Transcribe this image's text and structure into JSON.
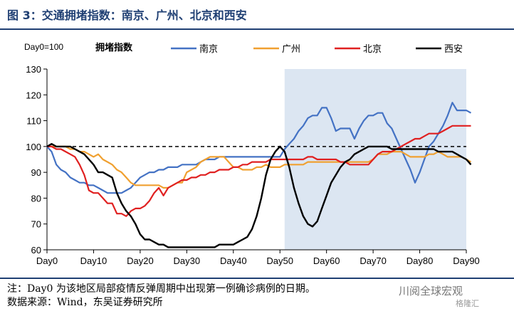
{
  "figure_title": "图 3：交通拥堵指数：南京、广州、北京和西安",
  "notes": {
    "note": "注：Day0 为该地区局部疫情反弹周期中出现第一例确诊病例的日期。",
    "source": "数据来源：Wind，东吴证券研究所"
  },
  "watermark": {
    "text": "川阅全球宏观",
    "sub": "格隆汇"
  },
  "chart_data": {
    "type": "line",
    "title": "拥堵指数",
    "baseline_label": "Day0=100",
    "ylim": [
      60,
      130
    ],
    "yticks": [
      60,
      70,
      80,
      90,
      100,
      110,
      120,
      130
    ],
    "xlim": [
      0,
      90
    ],
    "xticks": [
      0,
      10,
      20,
      30,
      40,
      50,
      60,
      70,
      80,
      90
    ],
    "xtick_labels": [
      "Day0",
      "Day10",
      "Day20",
      "Day30",
      "Day40",
      "Day50",
      "Day60",
      "Day70",
      "Day80",
      "Day90"
    ],
    "shaded_range": [
      51,
      90
    ],
    "shade_color": "#dce6f2",
    "reference_line": 100,
    "legend_position": "top",
    "series": [
      {
        "name": "南京",
        "color": "#4472c4",
        "values": [
          100,
          98,
          93,
          91,
          90,
          88,
          87,
          86,
          86,
          85,
          85,
          84,
          83,
          82,
          82,
          82,
          82,
          83,
          84,
          86,
          88,
          89,
          90,
          90,
          91,
          91,
          92,
          92,
          92,
          93,
          93,
          93,
          93,
          94,
          95,
          95,
          95,
          96,
          96,
          96,
          96,
          96,
          96,
          96,
          96,
          96,
          96,
          96,
          96,
          96,
          96,
          99,
          101,
          103,
          106,
          108,
          111,
          112,
          112,
          115,
          115,
          111,
          106,
          107,
          107,
          107,
          103,
          107,
          110,
          112,
          112,
          113,
          113,
          109,
          107,
          103,
          99,
          95,
          91,
          86,
          90,
          95,
          100,
          102,
          105,
          108,
          112,
          117,
          114,
          114,
          114,
          113
        ]
      },
      {
        "name": "广州",
        "color": "#f0a030",
        "values": [
          100,
          100,
          100,
          100,
          100,
          99,
          99,
          98,
          98,
          97,
          96,
          97,
          95,
          94,
          93,
          91,
          90,
          88,
          86,
          85,
          85,
          85,
          85,
          85,
          85,
          84,
          84,
          85,
          86,
          86,
          90,
          91,
          92,
          94,
          95,
          96,
          96,
          96,
          96,
          94,
          92,
          92,
          91,
          91,
          91,
          92,
          92,
          93,
          92,
          92,
          92,
          93,
          93,
          93,
          93,
          93,
          94,
          94,
          94,
          94,
          94,
          94,
          94,
          94,
          94,
          94,
          94,
          94,
          94,
          94,
          95,
          97,
          97,
          97,
          98,
          98,
          98,
          97,
          96,
          96,
          96,
          96,
          97,
          97,
          98,
          97,
          96,
          96,
          96,
          96,
          95,
          94
        ]
      },
      {
        "name": "北京",
        "color": "#e02020",
        "values": [
          100,
          100,
          99,
          99,
          98,
          97,
          96,
          93,
          89,
          83,
          82,
          82,
          80,
          78,
          78,
          74,
          74,
          73,
          75,
          76,
          76,
          77,
          79,
          82,
          84,
          81,
          84,
          85,
          86,
          87,
          87,
          88,
          88,
          89,
          89,
          90,
          90,
          91,
          91,
          91,
          92,
          92,
          93,
          93,
          94,
          94,
          94,
          94,
          95,
          95,
          95,
          95,
          95,
          95,
          95,
          95,
          96,
          96,
          95,
          95,
          95,
          95,
          95,
          94,
          94,
          93,
          93,
          93,
          93,
          93,
          95,
          97,
          98,
          98,
          98,
          99,
          100,
          101,
          102,
          103,
          103,
          104,
          105,
          105,
          105,
          106,
          107,
          108,
          108,
          108,
          108,
          108
        ]
      },
      {
        "name": "西安",
        "color": "#000000",
        "values": [
          100,
          101,
          100,
          100,
          100,
          100,
          99,
          98,
          97,
          95,
          93,
          90,
          90,
          89,
          88,
          82,
          78,
          75,
          73,
          70,
          66,
          64,
          64,
          63,
          62,
          62,
          61,
          61,
          61,
          61,
          61,
          61,
          61,
          61,
          61,
          61,
          61,
          62,
          62,
          62,
          62,
          63,
          64,
          65,
          68,
          73,
          80,
          89,
          95,
          98,
          100,
          98,
          92,
          84,
          78,
          73,
          70,
          69,
          71,
          76,
          81,
          86,
          89,
          92,
          94,
          95,
          97,
          98,
          99,
          100,
          100,
          100,
          100,
          100,
          99,
          99,
          99,
          99,
          99,
          99,
          99,
          99,
          99,
          99,
          98,
          98,
          98,
          98,
          97,
          96,
          95,
          93
        ]
      }
    ]
  }
}
